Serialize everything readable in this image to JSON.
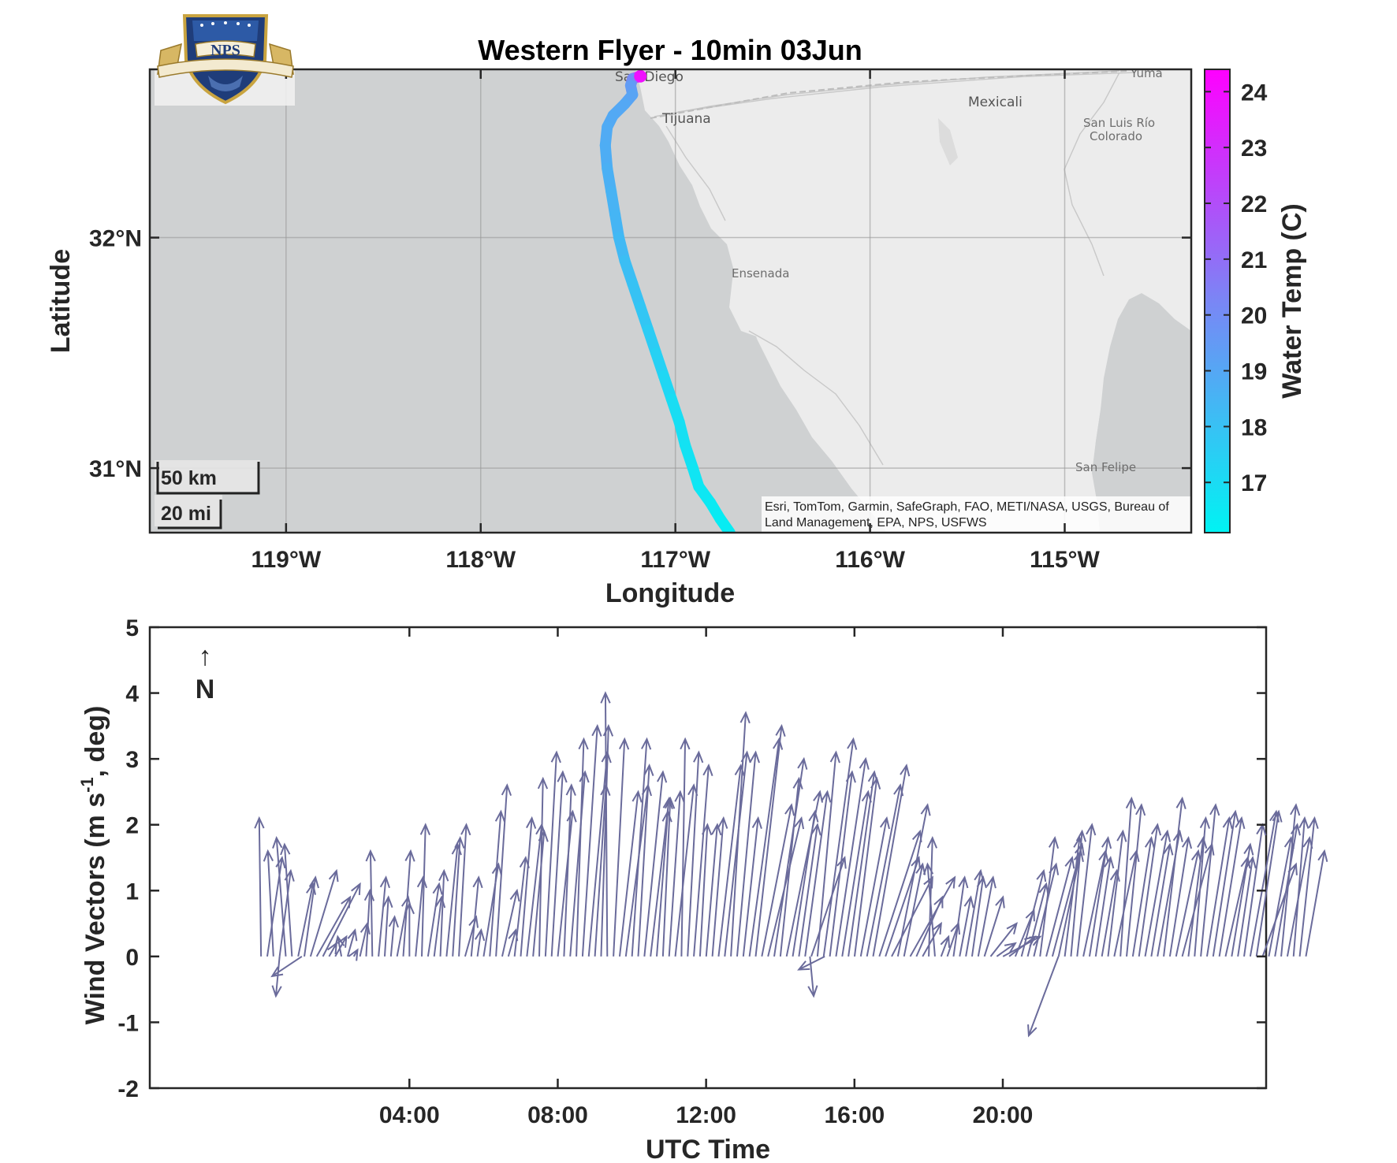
{
  "logo": {
    "text": "NPS",
    "motto": "PRAESTANTIA PER SCIENTIAM"
  },
  "map": {
    "title": "Western Flyer - 10min 03Jun",
    "xlabel": "Longitude",
    "ylabel": "Latitude",
    "x_ticks": [
      "119°W",
      "118°W",
      "117°W",
      "116°W",
      "115°W"
    ],
    "y_ticks": [
      "32°N",
      "31°N"
    ],
    "colorbar_label": "Water Temp (C)",
    "colorbar_ticks": [
      "17",
      "18",
      "19",
      "20",
      "21",
      "22",
      "23",
      "24"
    ],
    "place_labels": [
      "San Diego",
      "Tijuana",
      "Mexicali",
      "Yuma",
      "San Luis Río",
      "Colorado",
      "Ensenada",
      "San Felipe"
    ],
    "attribution_line1": "Esri, TomTom, Garmin, SafeGraph, FAO, METI/NASA, USGS, Bureau of",
    "attribution_line2": "Land Management, EPA, NPS, USFWS",
    "scale_km": "50 km",
    "scale_mi": "20 mi",
    "colors": {
      "ocean": "#cfd1d2",
      "land": "#ececec",
      "track_low": "#00f0f0",
      "track_high": "#ff00ff"
    }
  },
  "wind": {
    "ylabel_pre": "Wind Vectors (m s",
    "ylabel_sup": "-1",
    "ylabel_post": ", deg)",
    "xlabel": "UTC Time",
    "x_ticks": [
      "04:00",
      "08:00",
      "12:00",
      "16:00",
      "20:00"
    ],
    "y_ticks": [
      "5",
      "4",
      "3",
      "2",
      "1",
      "0",
      "-1",
      "-2"
    ],
    "north_arrow": "↑",
    "north_label": "N",
    "vector_color": "#6a6b9b"
  },
  "chart_data": [
    {
      "type": "scatter",
      "title": "Western Flyer - 10min 03Jun",
      "xlabel": "Longitude",
      "ylabel": "Latitude",
      "xlim": [
        -119.7,
        -114.35
      ],
      "ylim": [
        30.72,
        32.73
      ],
      "colorbar": {
        "label": "Water Temp (C)",
        "range": [
          16.1,
          24.4
        ]
      },
      "track": [
        {
          "lon": -117.18,
          "lat": 32.7,
          "temp": 23.9
        },
        {
          "lon": -117.22,
          "lat": 32.69,
          "temp": 20.5
        },
        {
          "lon": -117.23,
          "lat": 32.66,
          "temp": 19.6
        },
        {
          "lon": -117.22,
          "lat": 32.62,
          "temp": 19.2
        },
        {
          "lon": -117.26,
          "lat": 32.58,
          "temp": 19.0
        },
        {
          "lon": -117.32,
          "lat": 32.53,
          "temp": 18.9
        },
        {
          "lon": -117.35,
          "lat": 32.48,
          "temp": 18.9
        },
        {
          "lon": -117.36,
          "lat": 32.4,
          "temp": 18.8
        },
        {
          "lon": -117.35,
          "lat": 32.3,
          "temp": 18.7
        },
        {
          "lon": -117.33,
          "lat": 32.2,
          "temp": 18.6
        },
        {
          "lon": -117.31,
          "lat": 32.1,
          "temp": 18.5
        },
        {
          "lon": -117.29,
          "lat": 32.0,
          "temp": 18.4
        },
        {
          "lon": -117.26,
          "lat": 31.9,
          "temp": 18.2
        },
        {
          "lon": -117.22,
          "lat": 31.8,
          "temp": 18.0
        },
        {
          "lon": -117.18,
          "lat": 31.7,
          "temp": 17.9
        },
        {
          "lon": -117.14,
          "lat": 31.6,
          "temp": 17.7
        },
        {
          "lon": -117.1,
          "lat": 31.5,
          "temp": 17.5
        },
        {
          "lon": -117.06,
          "lat": 31.4,
          "temp": 17.3
        },
        {
          "lon": -117.02,
          "lat": 31.3,
          "temp": 17.0
        },
        {
          "lon": -116.98,
          "lat": 31.2,
          "temp": 16.9
        },
        {
          "lon": -116.95,
          "lat": 31.1,
          "temp": 16.8
        },
        {
          "lon": -116.91,
          "lat": 31.0,
          "temp": 16.7
        },
        {
          "lon": -116.88,
          "lat": 30.92,
          "temp": 16.6
        },
        {
          "lon": -116.82,
          "lat": 30.85,
          "temp": 16.5
        },
        {
          "lon": -116.77,
          "lat": 30.78,
          "temp": 16.4
        },
        {
          "lon": -116.72,
          "lat": 30.72,
          "temp": 16.3
        }
      ]
    },
    {
      "type": "quiver",
      "xlabel": "UTC Time",
      "ylabel": "Wind Vectors (m s-1, deg)",
      "xlim": [
        -3.0,
        27.1
      ],
      "ylim": [
        -2,
        5
      ],
      "x_ticks_hours": [
        4,
        8,
        12,
        16,
        20
      ],
      "vectors_start": {
        "hour": 0.0,
        "step_hours": 0.1667
      },
      "vectors": [
        [
          -0.05,
          2.1
        ],
        [
          0.4,
          1.5
        ],
        [
          -0.15,
          1.6
        ],
        [
          0.3,
          1.3
        ],
        [
          -0.25,
          1.8
        ],
        [
          -0.2,
          1.7
        ],
        [
          0.4,
          1.1
        ],
        [
          0.3,
          1.2
        ],
        [
          0.7,
          1.3
        ],
        [
          0.9,
          0.9
        ],
        [
          1.0,
          1.1
        ],
        [
          0.2,
          0.2
        ],
        [
          0.3,
          0.3
        ],
        [
          -0.1,
          0.3
        ],
        [
          0.2,
          0.4
        ],
        [
          0.1,
          0.1
        ],
        [
          0.2,
          0.5
        ],
        [
          0.1,
          1.0
        ],
        [
          -0.05,
          1.6
        ],
        [
          0.2,
          1.2
        ],
        [
          0.1,
          0.9
        ],
        [
          0.1,
          0.6
        ],
        [
          0.3,
          0.9
        ],
        [
          0.2,
          1.6
        ],
        [
          0.0,
          0.8
        ],
        [
          0.2,
          1.2
        ],
        [
          0.1,
          2.0
        ],
        [
          0.3,
          1.1
        ],
        [
          0.2,
          0.9
        ],
        [
          0.1,
          1.3
        ],
        [
          0.3,
          1.7
        ],
        [
          0.2,
          1.8
        ],
        [
          0.2,
          2.0
        ],
        [
          0.3,
          0.6
        ],
        [
          0.2,
          1.2
        ],
        [
          0.1,
          0.4
        ],
        [
          0.4,
          1.4
        ],
        [
          0.3,
          2.2
        ],
        [
          0.3,
          2.6
        ],
        [
          0.4,
          1.0
        ],
        [
          0.2,
          0.4
        ],
        [
          0.3,
          1.5
        ],
        [
          0.3,
          2.1
        ],
        [
          0.4,
          2.0
        ],
        [
          0.3,
          1.9
        ],
        [
          0.1,
          2.7
        ],
        [
          0.3,
          3.1
        ],
        [
          0.3,
          2.8
        ],
        [
          0.4,
          2.2
        ],
        [
          0.2,
          2.6
        ],
        [
          0.4,
          2.8
        ],
        [
          0.2,
          3.3
        ],
        [
          0.4,
          3.5
        ],
        [
          0.5,
          3.1
        ],
        [
          0.3,
          2.6
        ],
        [
          0.2,
          3.5
        ],
        [
          -0.05,
          4.0
        ],
        [
          0.3,
          3.3
        ],
        [
          0.5,
          2.5
        ],
        [
          0.6,
          2.6
        ],
        [
          0.4,
          3.3
        ],
        [
          0.3,
          2.9
        ],
        [
          0.5,
          2.8
        ],
        [
          0.5,
          2.4
        ],
        [
          0.3,
          2.2
        ],
        [
          0.2,
          2.4
        ],
        [
          0.3,
          2.5
        ],
        [
          0.5,
          2.6
        ],
        [
          0.1,
          3.3
        ],
        [
          0.3,
          3.1
        ],
        [
          0.4,
          2.9
        ],
        [
          0.2,
          2.0
        ],
        [
          0.3,
          2.0
        ],
        [
          0.3,
          2.1
        ],
        [
          0.6,
          2.9
        ],
        [
          0.6,
          3.1
        ],
        [
          0.4,
          3.7
        ],
        [
          0.5,
          3.1
        ],
        [
          0.4,
          2.1
        ],
        [
          0.8,
          3.3
        ],
        [
          0.7,
          3.5
        ],
        [
          0.8,
          2.3
        ],
        [
          0.9,
          2.1
        ],
        [
          0.8,
          3.0
        ],
        [
          0.5,
          2.7
        ],
        [
          0.9,
          2.5
        ],
        [
          0.6,
          2.2
        ],
        [
          0.5,
          2.0
        ],
        [
          0.6,
          2.5
        ],
        [
          0.9,
          1.5
        ],
        [
          0.5,
          3.1
        ],
        [
          0.8,
          3.3
        ],
        [
          0.6,
          2.8
        ],
        [
          0.8,
          3.0
        ],
        [
          0.7,
          2.5
        ],
        [
          0.7,
          2.8
        ],
        [
          0.6,
          2.7
        ],
        [
          0.7,
          2.1
        ],
        [
          0.9,
          2.6
        ],
        [
          0.9,
          2.9
        ],
        [
          1.1,
          1.9
        ],
        [
          0.9,
          1.5
        ],
        [
          1.1,
          1.2
        ],
        [
          0.8,
          2.3
        ],
        [
          0.5,
          1.4
        ],
        [
          1.2,
          1.2
        ],
        [
          0.7,
          0.9
        ],
        [
          0.5,
          0.5
        ],
        [
          0.1,
          1.8
        ],
        [
          -0.2,
          1.4
        ],
        [
          0.2,
          0.3
        ],
        [
          0.3,
          0.5
        ],
        [
          0.3,
          1.2
        ],
        [
          0.3,
          0.9
        ],
        [
          0.4,
          1.3
        ],
        [
          0.3,
          1.2
        ],
        [
          0.4,
          1.2
        ],
        [
          0.5,
          0.9
        ],
        [
          0.7,
          0.5
        ],
        [
          0.5,
          0.2
        ],
        [
          1.0,
          0.3
        ],
        [
          0.7,
          0.3
        ],
        [
          0.5,
          0.7
        ],
        [
          0.6,
          1.3
        ],
        [
          0.5,
          1.1
        ],
        [
          0.6,
          1.4
        ],
        [
          0.4,
          1.8
        ],
        [
          0.7,
          1.5
        ],
        [
          0.8,
          1.7
        ],
        [
          0.6,
          1.6
        ],
        [
          0.4,
          1.8
        ],
        [
          0.3,
          1.9
        ],
        [
          0.4,
          2.0
        ],
        [
          0.6,
          1.6
        ],
        [
          0.5,
          1.8
        ],
        [
          0.4,
          1.5
        ],
        [
          0.4,
          1.3
        ],
        [
          0.4,
          1.9
        ],
        [
          0.6,
          1.6
        ],
        [
          0.3,
          2.4
        ],
        [
          0.4,
          2.3
        ],
        [
          0.5,
          1.8
        ],
        [
          0.5,
          2.0
        ],
        [
          0.6,
          1.9
        ],
        [
          0.5,
          1.7
        ],
        [
          0.6,
          1.9
        ],
        [
          0.5,
          2.4
        ],
        [
          0.5,
          1.8
        ],
        [
          0.6,
          1.6
        ],
        [
          0.8,
          1.7
        ],
        [
          0.4,
          1.8
        ],
        [
          0.3,
          2.1
        ],
        [
          0.4,
          2.3
        ],
        [
          0.6,
          2.1
        ],
        [
          0.6,
          2.2
        ],
        [
          0.6,
          2.1
        ],
        [
          0.6,
          1.5
        ],
        [
          0.5,
          1.7
        ],
        [
          0.4,
          1.5
        ],
        [
          0.5,
          2.0
        ],
        [
          0.7,
          2.2
        ],
        [
          0.6,
          2.2
        ],
        [
          0.9,
          1.4
        ],
        [
          0.6,
          1.8
        ],
        [
          0.6,
          2.0
        ],
        [
          0.4,
          2.3
        ],
        [
          0.6,
          1.8
        ],
        [
          0.3,
          2.1
        ],
        [
          0.4,
          2.1
        ],
        [
          0.5,
          1.6
        ]
      ],
      "outliers": [
        {
          "hour": 0.5,
          "u": -0.1,
          "v": -0.6
        },
        {
          "hour": 1.1,
          "u": -0.8,
          "v": -0.3
        },
        {
          "hour": 14.8,
          "u": 0.1,
          "v": -0.6
        },
        {
          "hour": 15.2,
          "u": -0.7,
          "v": -0.2
        },
        {
          "hour": 21.5,
          "u": -0.8,
          "v": -1.2
        }
      ]
    }
  ]
}
